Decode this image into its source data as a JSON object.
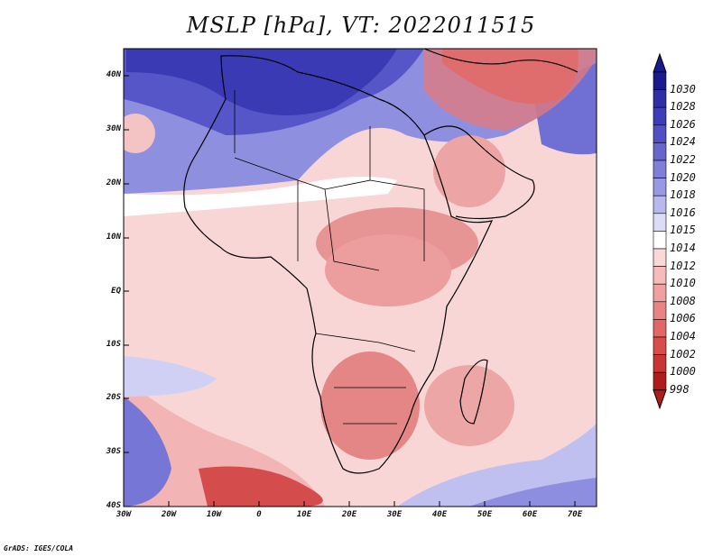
{
  "title": "MSLP [hPa], VT: 2022011515",
  "credit": "GrADS: IGES/COLA",
  "lat_labels": [
    "40N",
    "30N",
    "20N",
    "10N",
    "EQ",
    "10S",
    "20S",
    "30S",
    "40S"
  ],
  "lon_labels": [
    "30W",
    "20W",
    "10W",
    "0",
    "10E",
    "20E",
    "30E",
    "40E",
    "50E",
    "60E",
    "70E"
  ],
  "colorbar": {
    "labels": [
      "1030",
      "1028",
      "1026",
      "1024",
      "1022",
      "1020",
      "1018",
      "1016",
      "1015",
      "1014",
      "1012",
      "1010",
      "1008",
      "1006",
      "1004",
      "1002",
      "1000",
      "998"
    ],
    "colors": [
      "#1a1a8c",
      "#2e2ea6",
      "#3d3db8",
      "#5050c4",
      "#6666cc",
      "#7f7fd9",
      "#9999e3",
      "#b8b8ee",
      "#dcdcf7",
      "#ffffff",
      "#fbd8d8",
      "#f5bcbc",
      "#efa0a0",
      "#e98484",
      "#e26868",
      "#d84c4c",
      "#c93434",
      "#b01c1c"
    ]
  }
}
